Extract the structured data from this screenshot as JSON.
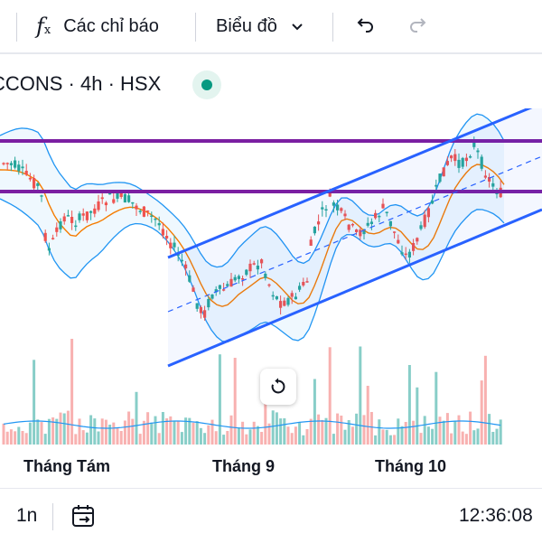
{
  "toolbar": {
    "indicators_icon": "fx-icon",
    "indicators_label": "Các chỉ báo",
    "chart_type_label": "Biểu đồ",
    "undo_icon": "undo-icon",
    "redo_icon": "redo-icon"
  },
  "symbol": {
    "text": "CCONS · 4h · HSX",
    "market_status": "open"
  },
  "colors": {
    "up": "#26a69a",
    "down": "#ef5350",
    "horizontal_lines": "#7b1fa2",
    "channel_lines": "#2962ff",
    "bollinger_bands": "#2196f3",
    "moving_average": "#f57c00"
  },
  "time_axis": {
    "labels": [
      "Tháng Tám",
      "Tháng 9",
      "Tháng 10"
    ]
  },
  "bottom_bar": {
    "interval": "1n",
    "goto_date_icon": "calendar-arrow-icon",
    "clock": "12:36:08"
  }
}
